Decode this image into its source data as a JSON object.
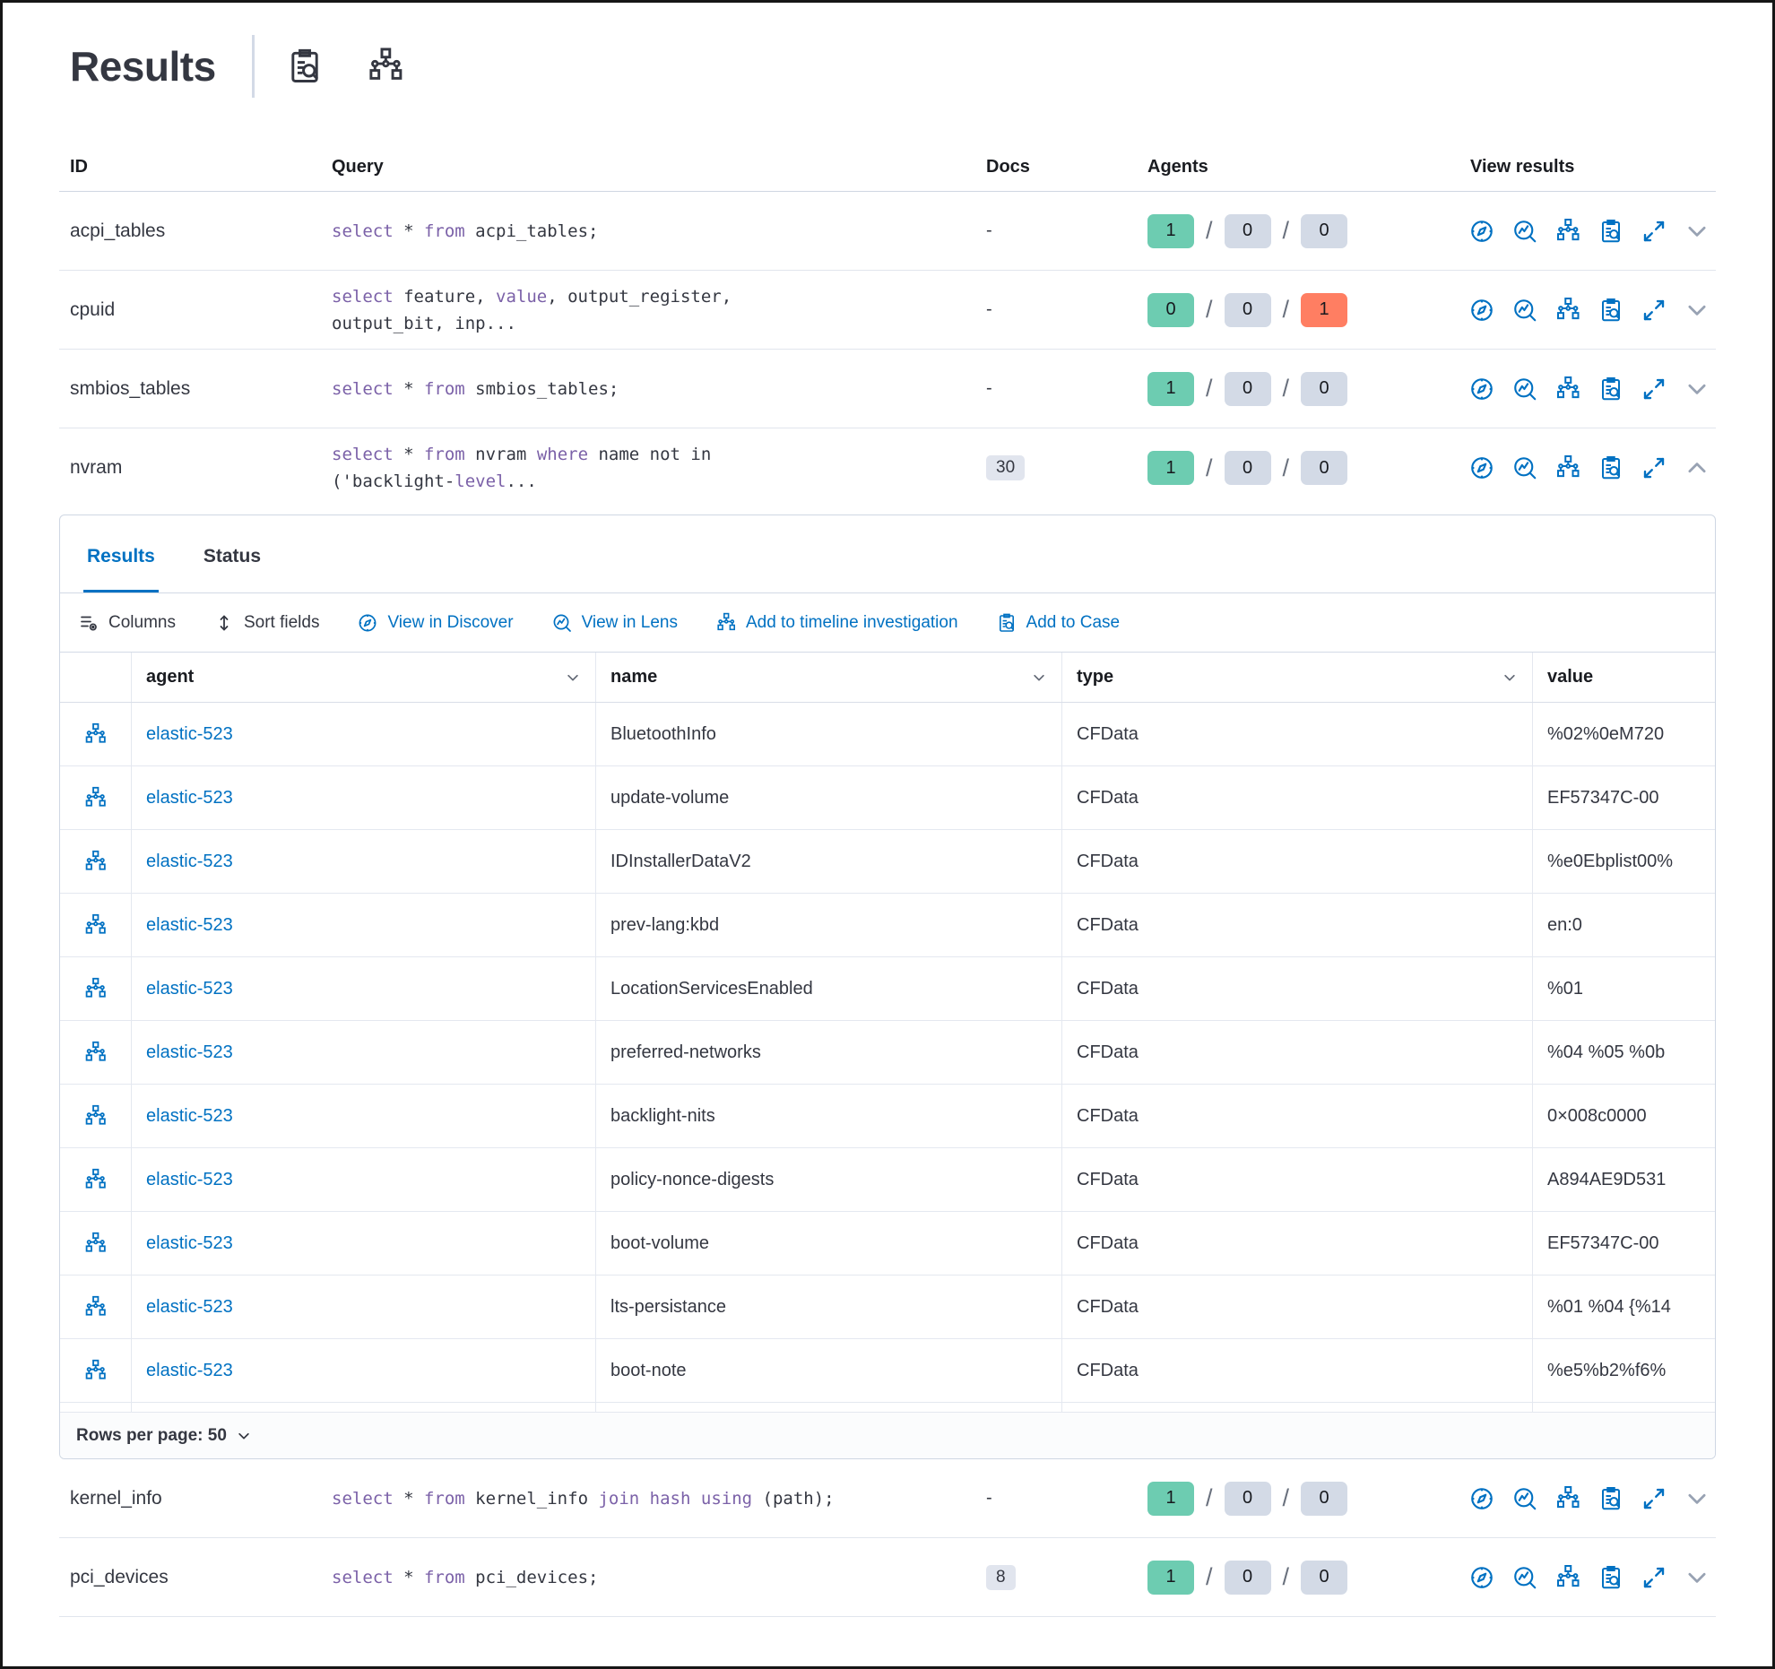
{
  "header": {
    "title": "Results",
    "icons": [
      "inspect-icon",
      "nodegraph-icon"
    ]
  },
  "table": {
    "columns": [
      "ID",
      "Query",
      "Docs",
      "Agents",
      "View results"
    ],
    "agents_separator": "/",
    "view_icons": [
      "discover-icon",
      "lens-icon",
      "timeline-icon",
      "case-icon",
      "expand-icon"
    ],
    "rows": [
      {
        "id": "acpi_tables",
        "docs_text": "-",
        "expanded": false,
        "query": [
          {
            "k": 1,
            "v": "select"
          },
          {
            "v": " * "
          },
          {
            "k": 1,
            "v": "from"
          },
          {
            "v": " acpi_tables;"
          }
        ],
        "agents": [
          {
            "v": "1",
            "c": "success"
          },
          {
            "v": "0",
            "c": "default"
          },
          {
            "v": "0",
            "c": "default"
          }
        ]
      },
      {
        "id": "cpuid",
        "docs_text": "-",
        "expanded": false,
        "query": [
          {
            "k": 1,
            "v": "select"
          },
          {
            "v": " feature, "
          },
          {
            "k": 1,
            "v": "value"
          },
          {
            "v": ", output_register,"
          },
          {
            "br": 1
          },
          {
            "v": "output_bit, inp..."
          }
        ],
        "agents": [
          {
            "v": "0",
            "c": "success"
          },
          {
            "v": "0",
            "c": "default"
          },
          {
            "v": "1",
            "c": "danger"
          }
        ]
      },
      {
        "id": "smbios_tables",
        "docs_text": "-",
        "expanded": false,
        "query": [
          {
            "k": 1,
            "v": "select"
          },
          {
            "v": " * "
          },
          {
            "k": 1,
            "v": "from"
          },
          {
            "v": " smbios_tables;"
          }
        ],
        "agents": [
          {
            "v": "1",
            "c": "success"
          },
          {
            "v": "0",
            "c": "default"
          },
          {
            "v": "0",
            "c": "default"
          }
        ]
      },
      {
        "id": "nvram",
        "docs_badge": "30",
        "expanded": true,
        "query": [
          {
            "k": 1,
            "v": "select"
          },
          {
            "v": " * "
          },
          {
            "k": 1,
            "v": "from"
          },
          {
            "v": " nvram "
          },
          {
            "k": 1,
            "v": "where"
          },
          {
            "v": " name not in"
          },
          {
            "br": 1
          },
          {
            "v": "('backlight-"
          },
          {
            "k": 1,
            "v": "level"
          },
          {
            "v": "..."
          }
        ],
        "agents": [
          {
            "v": "1",
            "c": "success"
          },
          {
            "v": "0",
            "c": "default"
          },
          {
            "v": "0",
            "c": "default"
          }
        ]
      },
      {
        "id": "kernel_info",
        "docs_text": "-",
        "expanded": false,
        "query": [
          {
            "k": 1,
            "v": "select"
          },
          {
            "v": " * "
          },
          {
            "k": 1,
            "v": "from"
          },
          {
            "v": " kernel_info "
          },
          {
            "k": 1,
            "v": "join"
          },
          {
            "v": " "
          },
          {
            "k": 1,
            "v": "hash"
          },
          {
            "v": " "
          },
          {
            "k": 1,
            "v": "using"
          },
          {
            "v": " (path);"
          }
        ],
        "agents": [
          {
            "v": "1",
            "c": "success"
          },
          {
            "v": "0",
            "c": "default"
          },
          {
            "v": "0",
            "c": "default"
          }
        ]
      },
      {
        "id": "pci_devices",
        "docs_badge": "8",
        "expanded": false,
        "query": [
          {
            "k": 1,
            "v": "select"
          },
          {
            "v": " * "
          },
          {
            "k": 1,
            "v": "from"
          },
          {
            "v": " pci_devices;"
          }
        ],
        "agents": [
          {
            "v": "1",
            "c": "success"
          },
          {
            "v": "0",
            "c": "default"
          },
          {
            "v": "0",
            "c": "default"
          }
        ]
      }
    ]
  },
  "panel": {
    "tabs": [
      {
        "label": "Results",
        "active": true
      },
      {
        "label": "Status",
        "active": false
      }
    ],
    "toolbar": [
      {
        "label": "Columns",
        "icon": "columns-icon",
        "style": "dark"
      },
      {
        "label": "Sort fields",
        "icon": "sort-icon",
        "style": "dark"
      },
      {
        "label": "View in Discover",
        "icon": "discover-icon",
        "style": "blue"
      },
      {
        "label": "View in Lens",
        "icon": "lens-icon",
        "style": "blue"
      },
      {
        "label": "Add to timeline investigation",
        "icon": "timeline-icon",
        "style": "blue"
      },
      {
        "label": "Add to Case",
        "icon": "case-icon",
        "style": "blue"
      }
    ],
    "grid": {
      "columns": [
        "agent",
        "name",
        "type",
        "value"
      ],
      "row_icon": "timeline-icon",
      "rows": [
        {
          "agent": "elastic-523",
          "name": "BluetoothInfo",
          "type": "CFData",
          "value": "%02%0eM720"
        },
        {
          "agent": "elastic-523",
          "name": "update-volume",
          "type": "CFData",
          "value": "EF57347C-00"
        },
        {
          "agent": "elastic-523",
          "name": "IDInstallerDataV2",
          "type": "CFData",
          "value": "%e0Ebplist00%"
        },
        {
          "agent": "elastic-523",
          "name": "prev-lang:kbd",
          "type": "CFData",
          "value": "en:0"
        },
        {
          "agent": "elastic-523",
          "name": "LocationServicesEnabled",
          "type": "CFData",
          "value": "%01"
        },
        {
          "agent": "elastic-523",
          "name": "preferred-networks",
          "type": "CFData",
          "value": "%04 %05 %0b"
        },
        {
          "agent": "elastic-523",
          "name": "backlight-nits",
          "type": "CFData",
          "value": "0×008c0000"
        },
        {
          "agent": "elastic-523",
          "name": "policy-nonce-digests",
          "type": "CFData",
          "value": "A894AE9D531"
        },
        {
          "agent": "elastic-523",
          "name": "boot-volume",
          "type": "CFData",
          "value": "EF57347C-00"
        },
        {
          "agent": "elastic-523",
          "name": "lts-persistance",
          "type": "CFData",
          "value": "%01 %04 {%14"
        },
        {
          "agent": "elastic-523",
          "name": "boot-note",
          "type": "CFData",
          "value": "%e5%b2%f6%"
        }
      ],
      "footer": {
        "rows_per_page_label": "Rows per page: 50"
      }
    }
  },
  "colors": {
    "accent_blue": "#0071c2",
    "keyword_purple": "#7b61a8",
    "badge_success": "#6dccb1",
    "badge_default": "#d3dae6",
    "badge_danger": "#ff7e62",
    "text_dark": "#343741"
  }
}
